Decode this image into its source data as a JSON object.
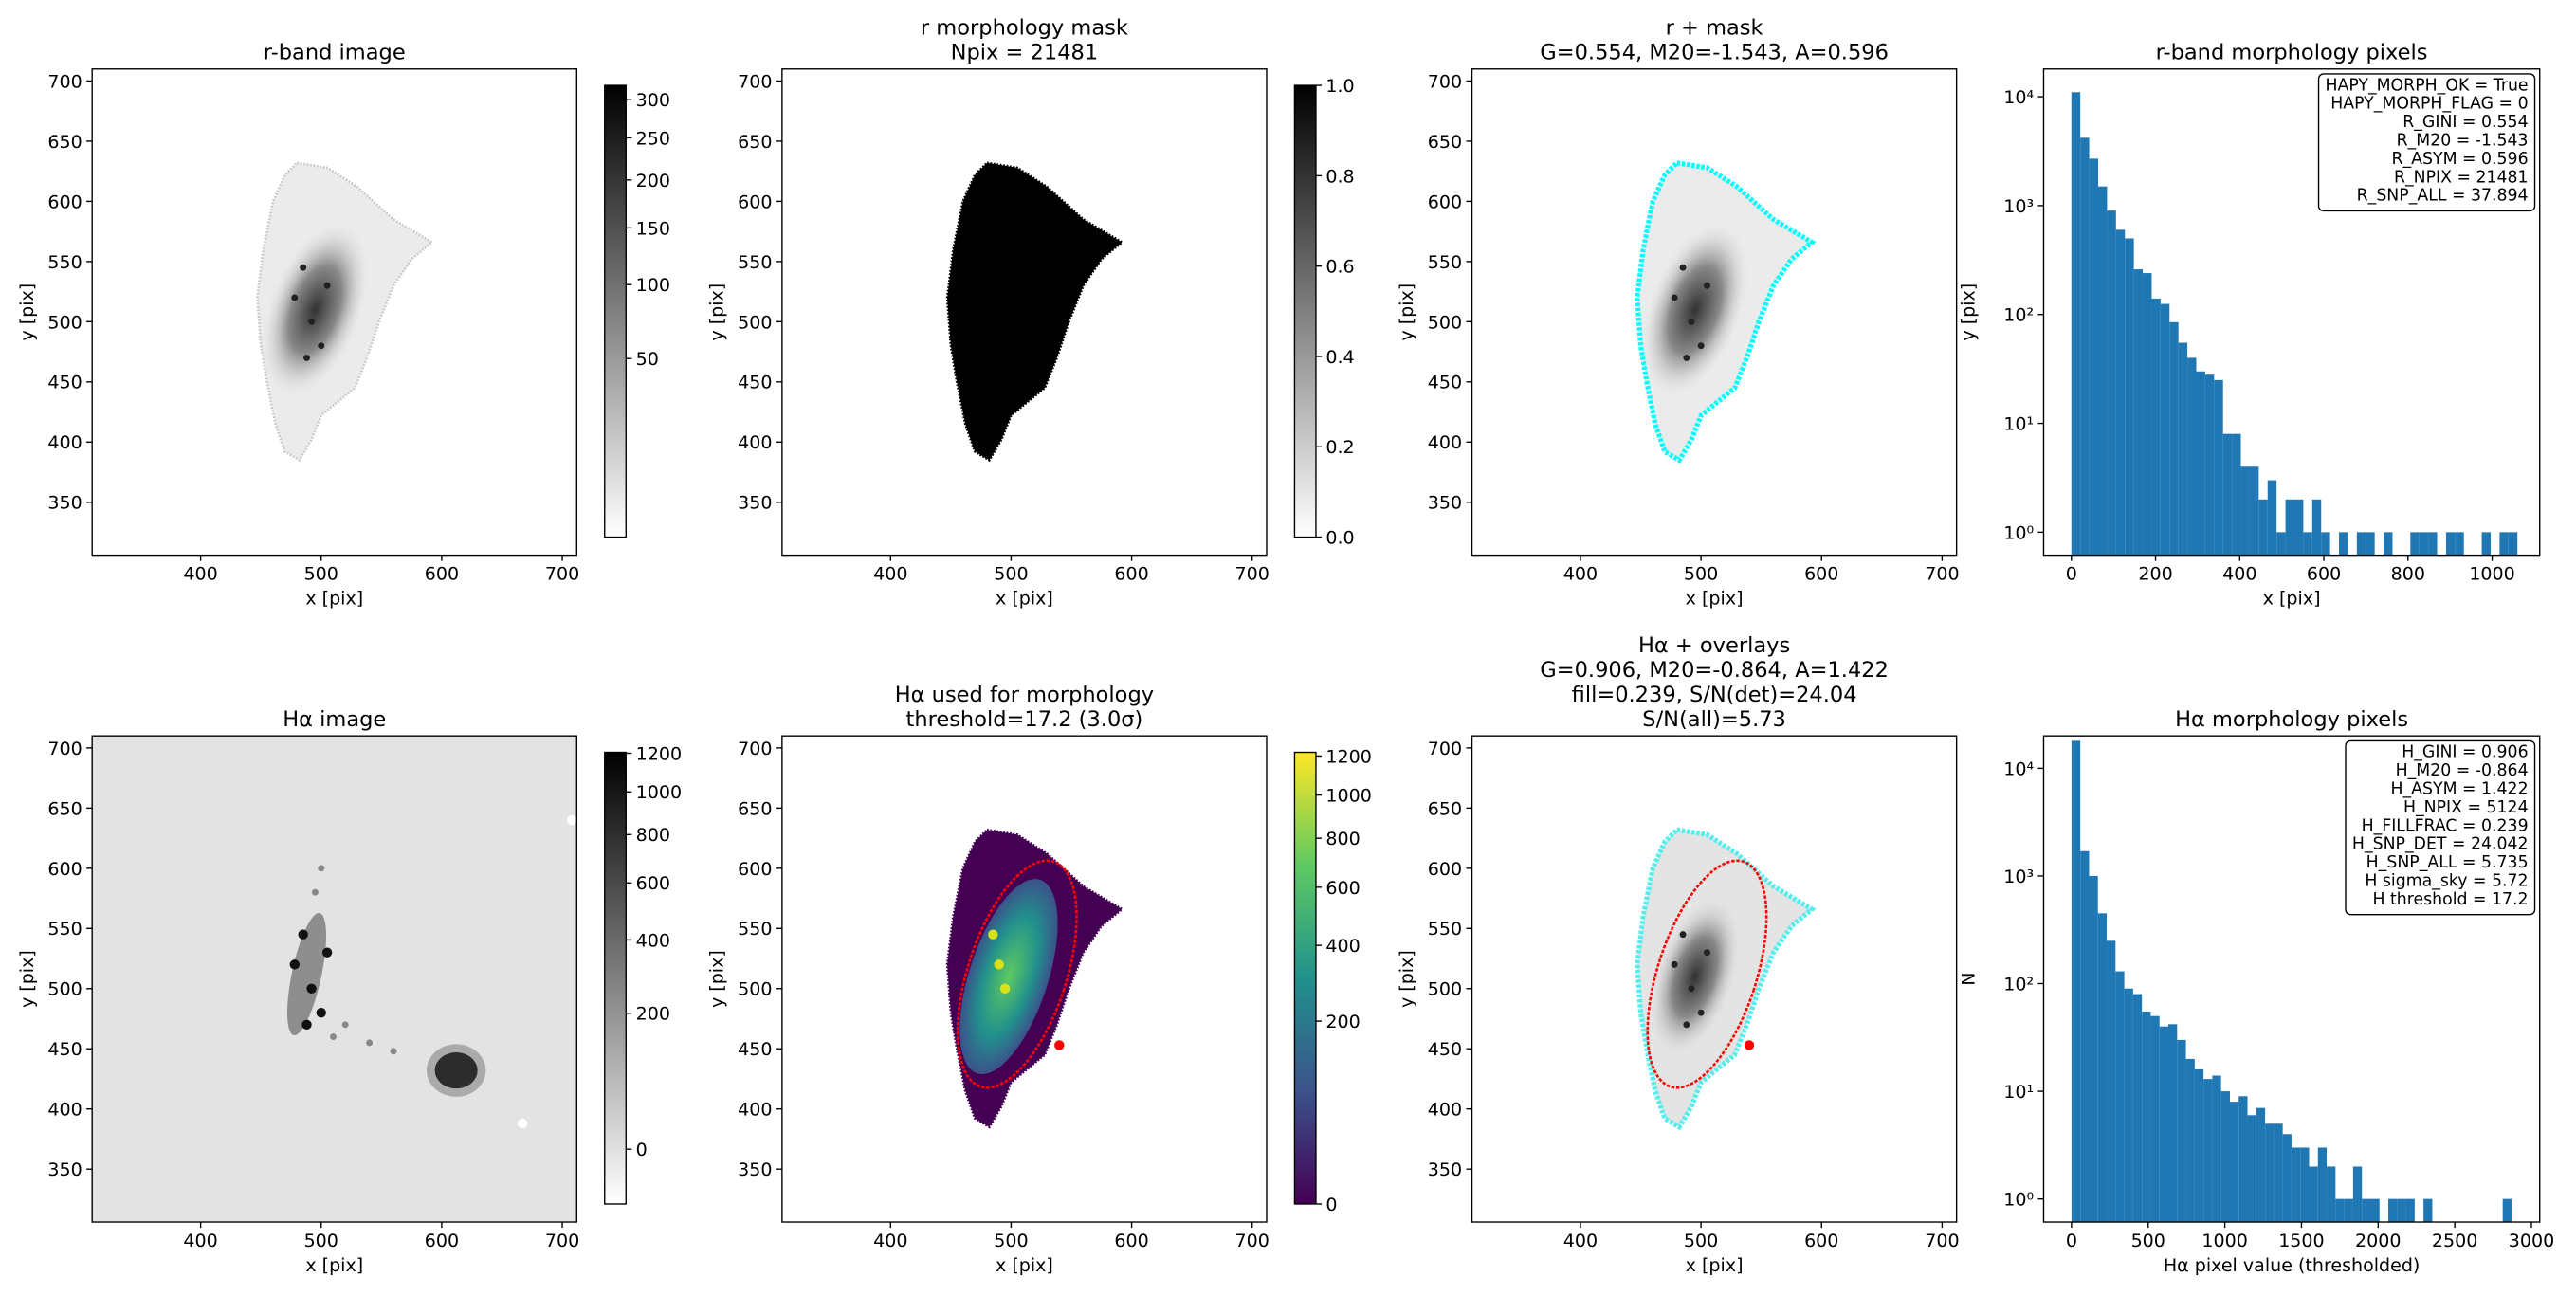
{
  "chart_data": [
    {
      "type": "image",
      "title": [
        "r-band image"
      ],
      "xlabel": "x [pix]",
      "ylabel": "y [pix]",
      "xlim": [
        310,
        712
      ],
      "ylim": [
        306,
        710
      ],
      "xticks": [
        400,
        500,
        600,
        700
      ],
      "yticks": [
        350,
        400,
        450,
        500,
        550,
        600,
        650,
        700
      ],
      "colorbar": {
        "cmap": "gray_r",
        "scale": "sqrt",
        "clim": [
          0,
          320
        ],
        "ticks": [
          50,
          100,
          150,
          200,
          250,
          300
        ]
      }
    },
    {
      "type": "image",
      "title": [
        "r morphology mask",
        "Npix = 21481"
      ],
      "xlabel": "x [pix]",
      "ylabel": "y [pix]",
      "xlim": [
        310,
        712
      ],
      "ylim": [
        306,
        710
      ],
      "xticks": [
        400,
        500,
        600,
        700
      ],
      "yticks": [
        350,
        400,
        450,
        500,
        550,
        600,
        650,
        700
      ],
      "colorbar": {
        "cmap": "gray_r",
        "scale": "linear",
        "clim": [
          0,
          1
        ],
        "ticks": [
          {
            "value": 0,
            "label": "0.0"
          },
          0.2,
          0.4,
          0.6,
          0.8,
          {
            "value": 1,
            "label": "1.0"
          }
        ]
      }
    },
    {
      "type": "image",
      "title": [
        "r + mask",
        "G=0.554, M20=-1.543, A=0.596"
      ],
      "xlabel": "x [pix]",
      "ylabel": "y [pix]",
      "xlim": [
        310,
        712
      ],
      "ylim": [
        306,
        710
      ],
      "xticks": [
        400,
        500,
        600,
        700
      ],
      "yticks": [
        350,
        400,
        450,
        500,
        550,
        600,
        650,
        700
      ]
    },
    {
      "type": "histogram",
      "title": [
        "r-band morphology pixels"
      ],
      "xlabel": "x [pix]",
      "ylabel": "y [pix]",
      "color": "#1f77b4",
      "log_y": true,
      "xlim": [
        -66,
        1113
      ],
      "ylim": [
        0.615,
        18000
      ],
      "xticks": [
        0,
        200,
        400,
        600,
        800,
        1000
      ],
      "yticks": [
        {
          "value": 1,
          "label": "10⁰"
        },
        {
          "value": 10,
          "label": "10¹"
        },
        {
          "value": 100,
          "label": "10²"
        },
        {
          "value": 1000,
          "label": "10³"
        },
        {
          "value": 10000,
          "label": "10⁴"
        }
      ],
      "bins": [
        0,
        21.2,
        42.4,
        63.6,
        84.8,
        106,
        127.2,
        148.4,
        169.6,
        190.8,
        212,
        233.2,
        254.4,
        275.6,
        296.8,
        318,
        339.2,
        360.4,
        381.6,
        402.8,
        424,
        445.2,
        466.4,
        487.6,
        508.8,
        530,
        551.2,
        572.4,
        593.6,
        614.8,
        636,
        657.2,
        678.4,
        699.6,
        720.8,
        742,
        763.2,
        784.4,
        805.6,
        826.8,
        848,
        869.2,
        890.4,
        911.6,
        932.8,
        954,
        975.2,
        996.4,
        1017.6,
        1038.8,
        1060
      ],
      "values": [
        11000,
        4200,
        2700,
        1500,
        900,
        600,
        500,
        260,
        240,
        140,
        125,
        85,
        55,
        40,
        30,
        28,
        25,
        8,
        8,
        4,
        4,
        2,
        3,
        1,
        2,
        2,
        1,
        2,
        1,
        0,
        1,
        0,
        1,
        1,
        0,
        1,
        0,
        0,
        1,
        1,
        1,
        0,
        1,
        1,
        0,
        0,
        1,
        0,
        1,
        1
      ],
      "annotation": [
        "HAPY_MORPH_OK = True",
        "HAPY_MORPH_FLAG = 0",
        "R_GINI = 0.554",
        "R_M20 = -1.543",
        "R_ASYM = 0.596",
        "R_NPIX = 21481",
        "R_SNP_ALL = 37.894"
      ]
    },
    {
      "type": "image",
      "title": [
        "Hα image"
      ],
      "xlabel": "x [pix]",
      "ylabel": "y [pix]",
      "xlim": [
        310,
        712
      ],
      "ylim": [
        306,
        710
      ],
      "xticks": [
        400,
        500,
        600,
        700
      ],
      "yticks": [
        350,
        400,
        450,
        500,
        550,
        600,
        650,
        700
      ],
      "colorbar": {
        "cmap": "gray_r",
        "scale": "sqrt",
        "clim": [
          -18,
          1205
        ],
        "ticks": [
          0,
          200,
          400,
          600,
          800,
          1000,
          1200
        ]
      }
    },
    {
      "type": "image",
      "title": [
        "Hα used for morphology",
        "threshold=17.2 (3.0σ)"
      ],
      "xlabel": "x [pix]",
      "ylabel": "y [pix]",
      "xlim": [
        310,
        712
      ],
      "ylim": [
        306,
        710
      ],
      "xticks": [
        400,
        500,
        600,
        700
      ],
      "yticks": [
        350,
        400,
        450,
        500,
        550,
        600,
        650,
        700
      ],
      "colorbar": {
        "cmap": "viridis",
        "scale": "sqrt",
        "clim": [
          0,
          1220
        ],
        "ticks": [
          0,
          200,
          400,
          600,
          800,
          1000,
          1200
        ]
      }
    },
    {
      "type": "image",
      "title": [
        "Hα + overlays",
        "G=0.906, M20=-0.864, A=1.422",
        "fill=0.239, S/N(det)=24.04",
        "S/N(all)=5.73"
      ],
      "xlabel": "x [pix]",
      "ylabel": "y [pix]",
      "xlim": [
        310,
        712
      ],
      "ylim": [
        306,
        710
      ],
      "xticks": [
        400,
        500,
        600,
        700
      ],
      "yticks": [
        350,
        400,
        450,
        500,
        550,
        600,
        650,
        700
      ]
    },
    {
      "type": "histogram",
      "title": [
        "Hα morphology pixels"
      ],
      "xlabel": "Hα pixel value (thresholded)",
      "ylabel": "N",
      "color": "#1f77b4",
      "log_y": true,
      "xlim": [
        -182,
        3054
      ],
      "ylim": [
        0.61,
        20000
      ],
      "xticks": [
        0,
        500,
        1000,
        1500,
        2000,
        2500,
        3000
      ],
      "yticks": [
        {
          "value": 1,
          "label": "10⁰"
        },
        {
          "value": 10,
          "label": "10¹"
        },
        {
          "value": 100,
          "label": "10²"
        },
        {
          "value": 1000,
          "label": "10³"
        },
        {
          "value": 10000,
          "label": "10⁴"
        }
      ],
      "bins": [
        0,
        57.4,
        114.8,
        172.2,
        229.6,
        287,
        344.4,
        401.8,
        459.2,
        516.6,
        574,
        631.4,
        688.8,
        746.2,
        803.6,
        861,
        918.4,
        975.8,
        1033.2,
        1090.6,
        1148,
        1205.4,
        1262.8,
        1320.2,
        1377.6,
        1435,
        1492.4,
        1549.8,
        1607.2,
        1664.6,
        1722,
        1779.4,
        1836.8,
        1894.2,
        1951.6,
        2009,
        2066.4,
        2123.8,
        2181.2,
        2238.6,
        2296,
        2353.4,
        2410.8,
        2468.2,
        2525.6,
        2583,
        2640.4,
        2697.8,
        2755.2,
        2812.6,
        2870
      ],
      "values": [
        18000,
        1700,
        1000,
        450,
        250,
        130,
        90,
        80,
        55,
        50,
        40,
        42,
        30,
        20,
        16,
        13,
        14,
        10,
        8,
        9,
        6,
        7,
        5,
        5,
        4,
        3,
        3,
        2,
        3,
        2,
        1,
        1,
        2,
        1,
        1,
        0,
        1,
        1,
        1,
        0,
        1,
        0,
        0,
        0,
        0,
        0,
        0,
        0,
        0,
        1
      ],
      "annotation": [
        "H_GINI = 0.906",
        "H_M20 = -0.864",
        "H_ASYM = 1.422",
        "H_NPIX = 5124",
        "H_FILLFRAC = 0.239",
        "H_SNP_DET = 24.042",
        "H_SNP_ALL = 5.735",
        "H sigma_sky = 5.72",
        "H threshold = 17.2"
      ]
    }
  ]
}
